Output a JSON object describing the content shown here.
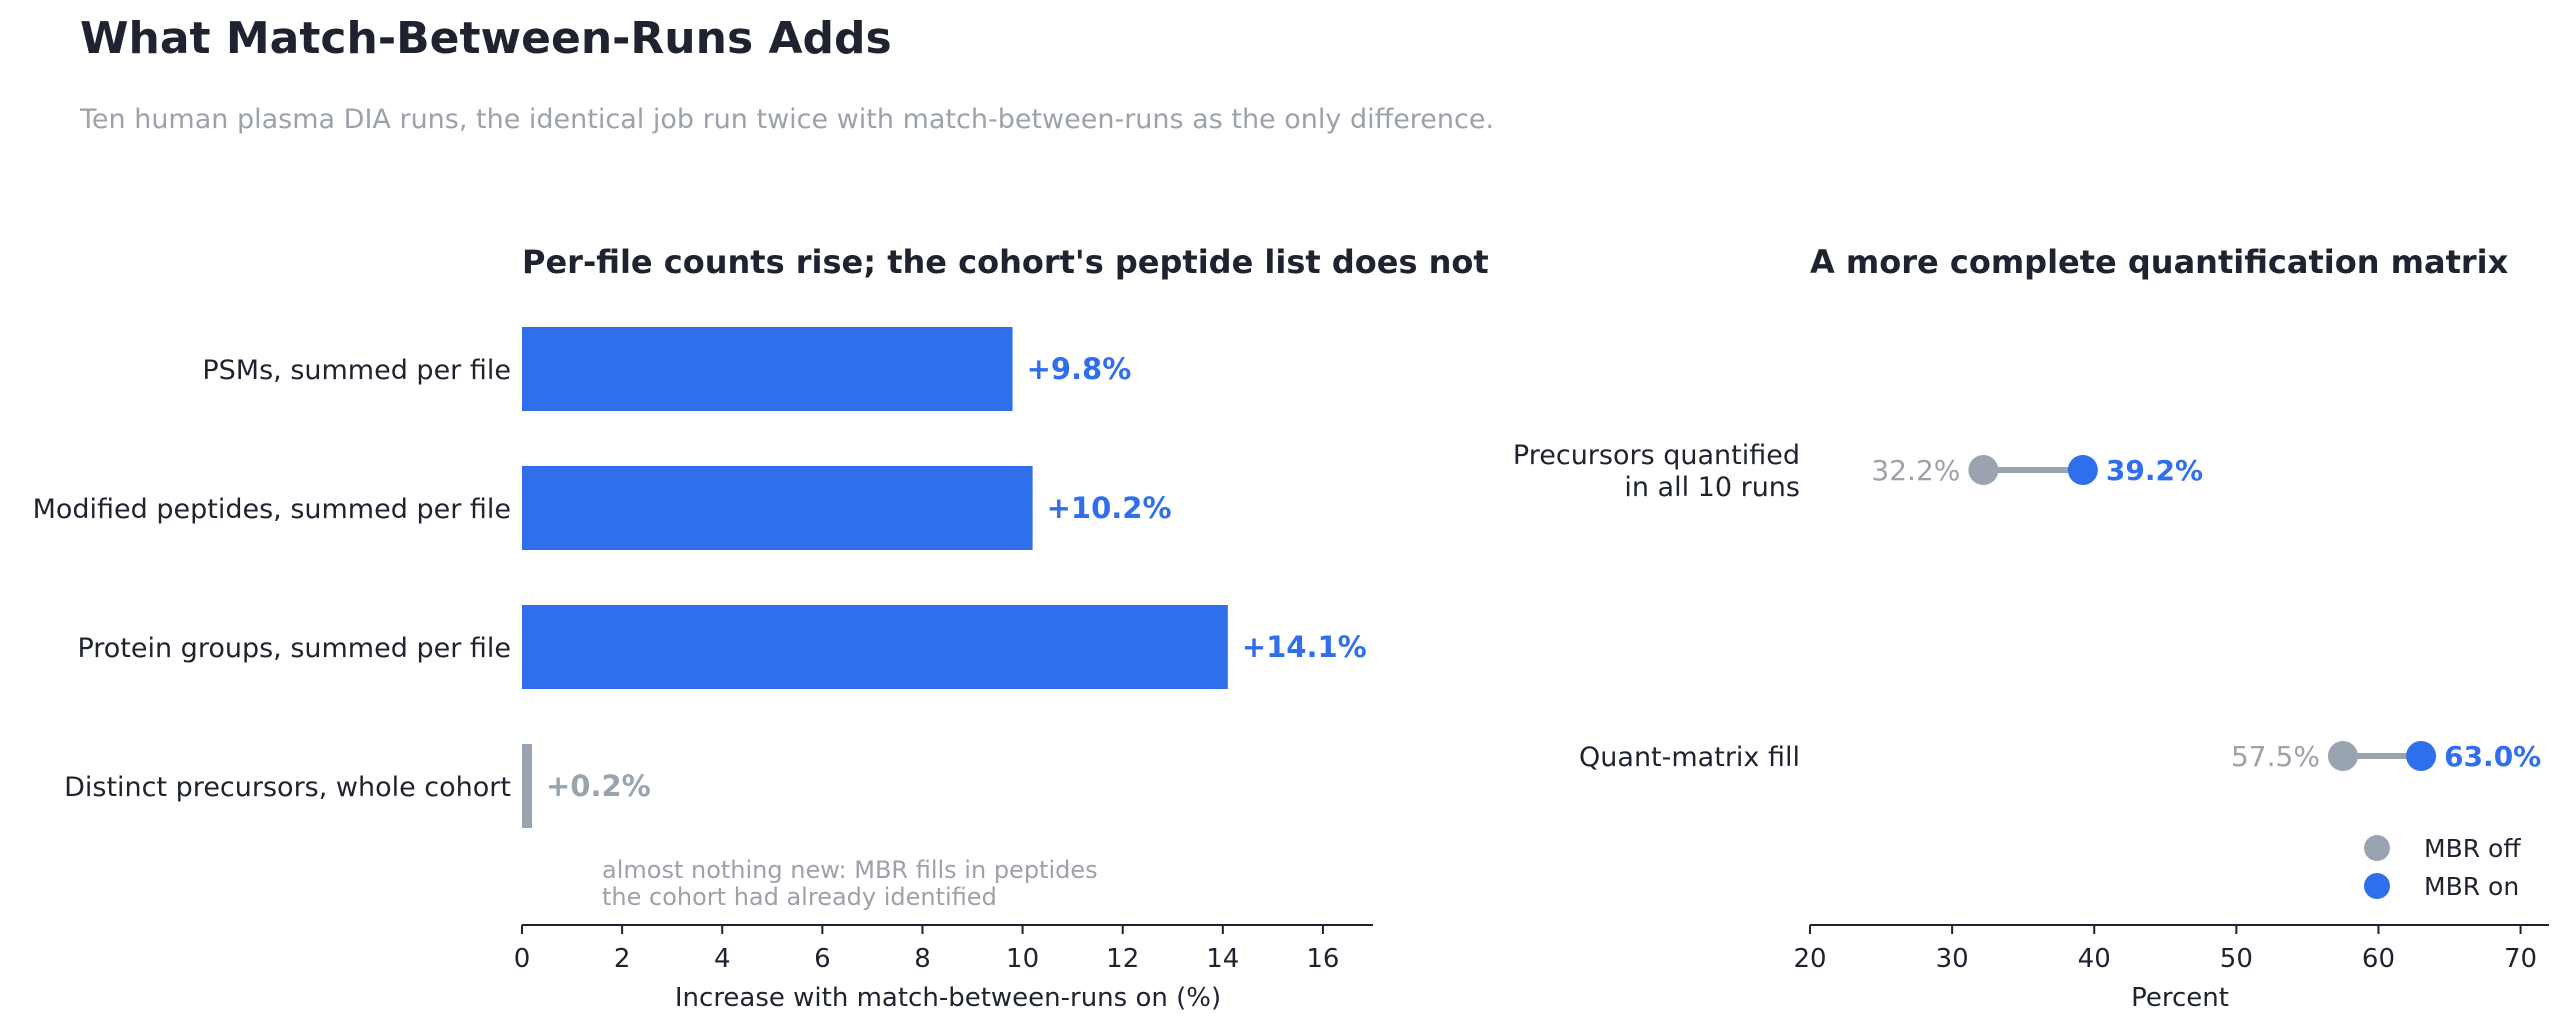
{
  "title": "What Match-Between-Runs Adds",
  "subtitle": "Ten human plasma DIA runs, the identical job run twice with match-between-runs as the only difference.",
  "colors": {
    "accent": "#2f6fec",
    "muted": "#9ca1aa",
    "connector": "#9aa3b0",
    "text": "#1f2330"
  },
  "chart_data": [
    {
      "type": "bar",
      "orientation": "horizontal",
      "title": "Per-file counts rise; the cohort's peptide list does not",
      "xlabel": "Increase with match-between-runs on (%)",
      "ylabel": "",
      "xlim": [
        0,
        17
      ],
      "xticks": [
        0,
        2,
        4,
        6,
        8,
        10,
        12,
        14,
        16
      ],
      "categories": [
        "PSMs, summed per file",
        "Modified peptides, summed per file",
        "Protein groups, summed per file",
        "Distinct precursors, whole cohort"
      ],
      "values": [
        9.8,
        10.2,
        14.1,
        0.2
      ],
      "value_labels": [
        "+9.8%",
        "+10.2%",
        "+14.1%",
        "+0.2%"
      ],
      "bar_colors": [
        "#2f6fec",
        "#2f6fec",
        "#2f6fec",
        "#9aa3b0"
      ],
      "annotation": [
        "almost nothing new: MBR fills in peptides",
        "the cohort had already identified"
      ],
      "grid": false
    },
    {
      "type": "scatter",
      "style": "dumbbell",
      "title": "A more complete quantification matrix",
      "xlabel": "Percent",
      "ylabel": "",
      "xlim": [
        20,
        72
      ],
      "xticks": [
        20,
        30,
        40,
        50,
        60,
        70
      ],
      "categories": [
        [
          "Precursors quantified",
          "in all 10 runs"
        ],
        [
          "Quant-matrix fill"
        ]
      ],
      "series": [
        {
          "name": "MBR off",
          "color": "#9aa3b0",
          "values": [
            32.2,
            57.5
          ],
          "labels": [
            "32.2%",
            "57.5%"
          ]
        },
        {
          "name": "MBR on",
          "color": "#2f6fec",
          "values": [
            39.2,
            63.0
          ],
          "labels": [
            "39.2%",
            "63.0%"
          ]
        }
      ],
      "legend": "bottom-right",
      "grid": false
    }
  ]
}
